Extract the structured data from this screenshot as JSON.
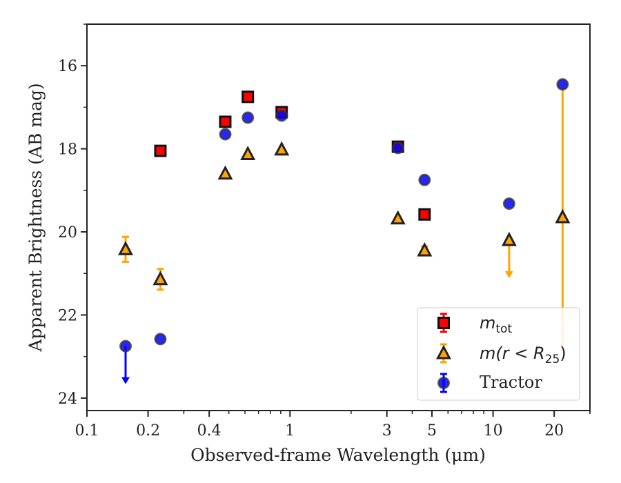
{
  "chart_data": {
    "type": "scatter",
    "xlabel": "Observed-frame Wavelength (μm)",
    "ylabel": "Apparent Brightness (AB mag)",
    "x_scale": "log",
    "xlim": [
      0.1,
      30
    ],
    "ylim": [
      24.3,
      15
    ],
    "y_inverted": true,
    "x_ticks": [
      {
        "value": 0.1,
        "label": "0.1"
      },
      {
        "value": 0.2,
        "label": "0.2"
      },
      {
        "value": 0.4,
        "label": "0.4"
      },
      {
        "value": 1,
        "label": "1"
      },
      {
        "value": 3,
        "label": "3"
      },
      {
        "value": 5,
        "label": "5"
      },
      {
        "value": 10,
        "label": "10"
      },
      {
        "value": 20,
        "label": "20"
      }
    ],
    "y_ticks": [
      {
        "value": 16,
        "label": "16"
      },
      {
        "value": 18,
        "label": "18"
      },
      {
        "value": 20,
        "label": "20"
      },
      {
        "value": 22,
        "label": "22"
      },
      {
        "value": 24,
        "label": "24"
      }
    ],
    "grid": false,
    "legend_position": "bottom-right",
    "series": [
      {
        "name": "m_tot",
        "marker": "square",
        "color": "#ff0000",
        "points": [
          {
            "x": 0.23,
            "y": 18.05,
            "err": 0.05
          },
          {
            "x": 0.48,
            "y": 17.35,
            "err": 0.05
          },
          {
            "x": 0.62,
            "y": 16.75,
            "err": 0.05
          },
          {
            "x": 0.91,
            "y": 17.12,
            "err": 0.05
          },
          {
            "x": 3.4,
            "y": 17.95,
            "err": 0.05
          },
          {
            "x": 4.6,
            "y": 19.58,
            "err": 0.05
          }
        ]
      },
      {
        "name": "m(r < R25)",
        "marker": "triangle",
        "color": "#ffa500",
        "points": [
          {
            "x": 0.155,
            "y": 20.42,
            "err": 0.3
          },
          {
            "x": 0.23,
            "y": 21.14,
            "err": 0.25
          },
          {
            "x": 0.48,
            "y": 18.6,
            "err": 0.05
          },
          {
            "x": 0.62,
            "y": 18.13,
            "err": 0.05
          },
          {
            "x": 0.91,
            "y": 18.02,
            "err": 0.05
          },
          {
            "x": 3.4,
            "y": 19.68,
            "err": 0.05
          },
          {
            "x": 4.6,
            "y": 20.45,
            "err": 0.1
          },
          {
            "x": 12,
            "y": 20.2,
            "err": 0,
            "upper_limit": true
          },
          {
            "x": 22,
            "y": 19.65,
            "err_low": 3.1,
            "err_high": 3.2
          }
        ]
      },
      {
        "name": "Tractor",
        "marker": "circle",
        "color": "#0000ff",
        "points": [
          {
            "x": 0.155,
            "y": 22.75,
            "err": 0,
            "upper_limit": true
          },
          {
            "x": 0.23,
            "y": 22.58,
            "err": 0.05
          },
          {
            "x": 0.48,
            "y": 17.65,
            "err": 0.05
          },
          {
            "x": 0.62,
            "y": 17.25,
            "err": 0.05
          },
          {
            "x": 0.91,
            "y": 17.2,
            "err": 0.05
          },
          {
            "x": 3.4,
            "y": 17.98,
            "err": 0.05
          },
          {
            "x": 4.6,
            "y": 18.75,
            "err": 0.05
          },
          {
            "x": 12,
            "y": 19.32,
            "err": 0.05
          },
          {
            "x": 22,
            "y": 16.45,
            "err": 0.05
          }
        ]
      }
    ],
    "legend": {
      "tot_base": "m",
      "tot_sub": "tot",
      "r25_pre": "m(r < R",
      "r25_sub": "25",
      "r25_post": ")",
      "tractor": "Tractor"
    }
  }
}
